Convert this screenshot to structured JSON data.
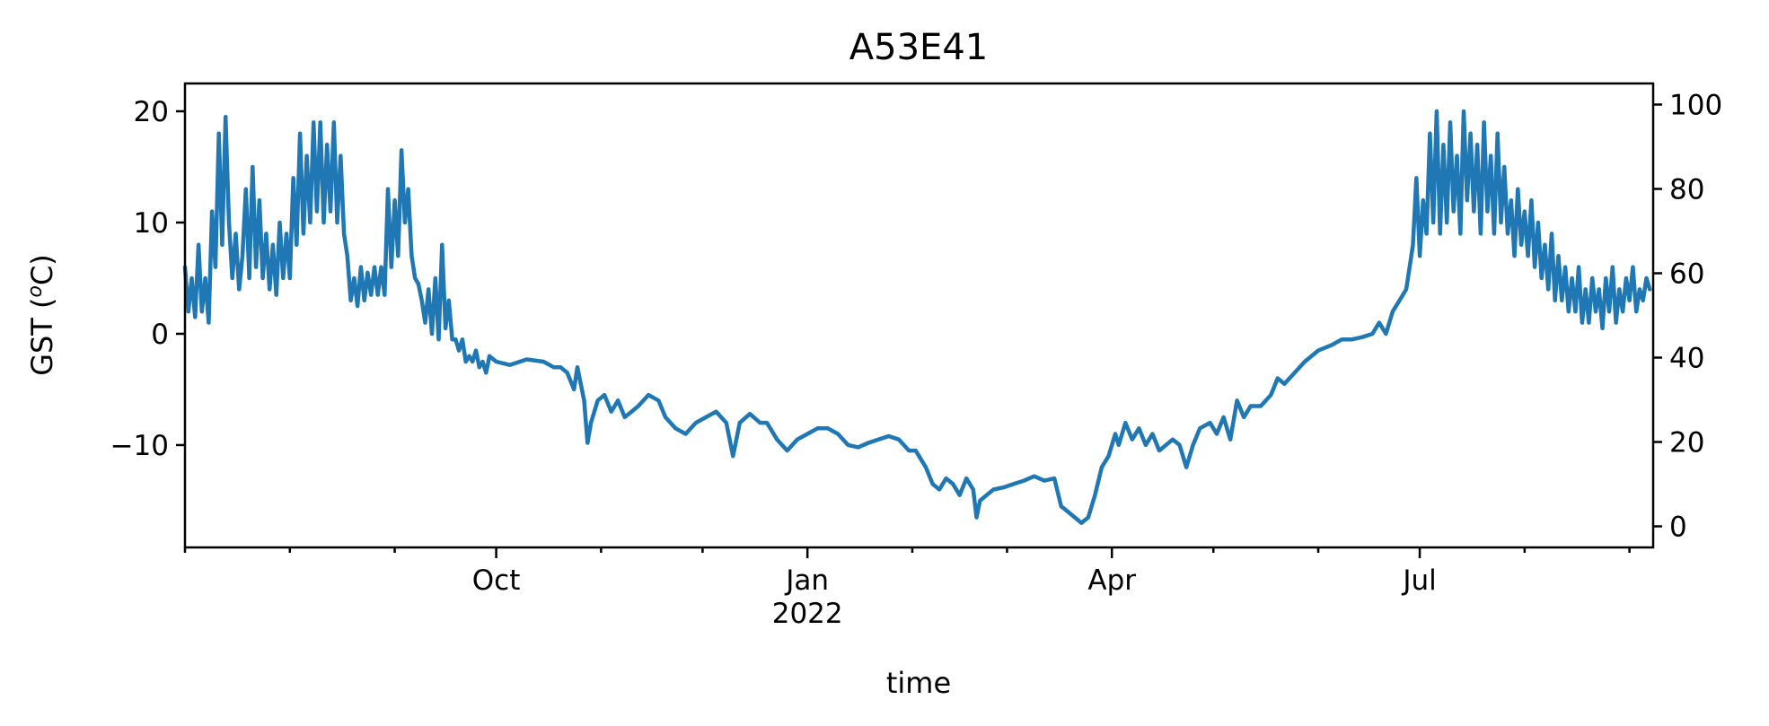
{
  "chart_data": {
    "type": "line",
    "title": "A53E41",
    "xlabel": "time",
    "ylabel": "GST (",
    "ylabel_sup": "o",
    "ylabel_tail": "C)",
    "x_range": [
      "2021-07-01",
      "2022-09-08"
    ],
    "ylim": [
      -19.2,
      22.5
    ],
    "y2lim": [
      -5.0,
      105.0
    ],
    "y_ticks": [
      {
        "value": 20,
        "label": "20"
      },
      {
        "value": 10,
        "label": "10"
      },
      {
        "value": 0,
        "label": "0"
      },
      {
        "value": -10,
        "label": "−10"
      }
    ],
    "y2_ticks": [
      {
        "value": 100,
        "label": "100"
      },
      {
        "value": 80,
        "label": "80"
      },
      {
        "value": 60,
        "label": "60"
      },
      {
        "value": 40,
        "label": "40"
      },
      {
        "value": 20,
        "label": "20"
      },
      {
        "value": 0,
        "label": "0"
      }
    ],
    "x_major_ticks": [
      {
        "date": "2021-10-01",
        "label": "Oct",
        "sublabel": ""
      },
      {
        "date": "2022-01-01",
        "label": "Jan",
        "sublabel": "2022"
      },
      {
        "date": "2022-04-01",
        "label": "Apr",
        "sublabel": ""
      },
      {
        "date": "2022-07-01",
        "label": "Jul",
        "sublabel": ""
      }
    ],
    "x_minor_ticks": [
      "2021-07-01",
      "2021-08-01",
      "2021-09-01",
      "2021-11-01",
      "2021-12-01",
      "2022-02-01",
      "2022-03-01",
      "2022-05-01",
      "2022-06-01",
      "2022-08-01",
      "2022-09-01"
    ],
    "grid": false,
    "series": [
      {
        "color": "#1f77b4",
        "points": [
          [
            "2021-07-01",
            6
          ],
          [
            "2021-07-02",
            2
          ],
          [
            "2021-07-03",
            5
          ],
          [
            "2021-07-04",
            1.5
          ],
          [
            "2021-07-05",
            8
          ],
          [
            "2021-07-06",
            2
          ],
          [
            "2021-07-07",
            5
          ],
          [
            "2021-07-08",
            1
          ],
          [
            "2021-07-09",
            11
          ],
          [
            "2021-07-10",
            6
          ],
          [
            "2021-07-11",
            18
          ],
          [
            "2021-07-12",
            8
          ],
          [
            "2021-07-13",
            19.5
          ],
          [
            "2021-07-14",
            10
          ],
          [
            "2021-07-15",
            5
          ],
          [
            "2021-07-16",
            9
          ],
          [
            "2021-07-17",
            4
          ],
          [
            "2021-07-18",
            7
          ],
          [
            "2021-07-19",
            13
          ],
          [
            "2021-07-20",
            5
          ],
          [
            "2021-07-21",
            15
          ],
          [
            "2021-07-22",
            6
          ],
          [
            "2021-07-23",
            12
          ],
          [
            "2021-07-24",
            5
          ],
          [
            "2021-07-25",
            9
          ],
          [
            "2021-07-26",
            4
          ],
          [
            "2021-07-27",
            8
          ],
          [
            "2021-07-28",
            3.5
          ],
          [
            "2021-07-29",
            10
          ],
          [
            "2021-07-30",
            5
          ],
          [
            "2021-07-31",
            9
          ],
          [
            "2021-08-01",
            5
          ],
          [
            "2021-08-02",
            14
          ],
          [
            "2021-08-03",
            8
          ],
          [
            "2021-08-04",
            18
          ],
          [
            "2021-08-05",
            9
          ],
          [
            "2021-08-06",
            16
          ],
          [
            "2021-08-07",
            10
          ],
          [
            "2021-08-08",
            19
          ],
          [
            "2021-08-09",
            11
          ],
          [
            "2021-08-10",
            19
          ],
          [
            "2021-08-11",
            10
          ],
          [
            "2021-08-12",
            17
          ],
          [
            "2021-08-13",
            11
          ],
          [
            "2021-08-14",
            19
          ],
          [
            "2021-08-15",
            10
          ],
          [
            "2021-08-16",
            16
          ],
          [
            "2021-08-17",
            9
          ],
          [
            "2021-08-18",
            7
          ],
          [
            "2021-08-19",
            3
          ],
          [
            "2021-08-20",
            5
          ],
          [
            "2021-08-21",
            2.5
          ],
          [
            "2021-08-22",
            6
          ],
          [
            "2021-08-23",
            3
          ],
          [
            "2021-08-24",
            5.5
          ],
          [
            "2021-08-25",
            3.5
          ],
          [
            "2021-08-26",
            6
          ],
          [
            "2021-08-27",
            3.5
          ],
          [
            "2021-08-28",
            6
          ],
          [
            "2021-08-29",
            3.5
          ],
          [
            "2021-08-30",
            13
          ],
          [
            "2021-08-31",
            6
          ],
          [
            "2021-09-01",
            12
          ],
          [
            "2021-09-02",
            7
          ],
          [
            "2021-09-03",
            16.5
          ],
          [
            "2021-09-04",
            10
          ],
          [
            "2021-09-05",
            13
          ],
          [
            "2021-09-06",
            7
          ],
          [
            "2021-09-07",
            5
          ],
          [
            "2021-09-08",
            4.5
          ],
          [
            "2021-09-09",
            3
          ],
          [
            "2021-09-10",
            1
          ],
          [
            "2021-09-11",
            4
          ],
          [
            "2021-09-12",
            0
          ],
          [
            "2021-09-13",
            5
          ],
          [
            "2021-09-14",
            -0.5
          ],
          [
            "2021-09-15",
            8
          ],
          [
            "2021-09-16",
            0.5
          ],
          [
            "2021-09-17",
            3
          ],
          [
            "2021-09-18",
            -0.5
          ],
          [
            "2021-09-19",
            -0.5
          ],
          [
            "2021-09-20",
            -1.5
          ],
          [
            "2021-09-21",
            -0.5
          ],
          [
            "2021-09-22",
            -2.5
          ],
          [
            "2021-09-23",
            -2
          ],
          [
            "2021-09-24",
            -2.5
          ],
          [
            "2021-09-25",
            -1.5
          ],
          [
            "2021-09-26",
            -3
          ],
          [
            "2021-09-27",
            -2.5
          ],
          [
            "2021-09-28",
            -3.5
          ],
          [
            "2021-09-29",
            -2
          ],
          [
            "2021-10-01",
            -2.5
          ],
          [
            "2021-10-05",
            -2.8
          ],
          [
            "2021-10-10",
            -2.3
          ],
          [
            "2021-10-15",
            -2.5
          ],
          [
            "2021-10-18",
            -3
          ],
          [
            "2021-10-20",
            -3
          ],
          [
            "2021-10-22",
            -3.5
          ],
          [
            "2021-10-24",
            -5
          ],
          [
            "2021-10-25",
            -3
          ],
          [
            "2021-10-27",
            -6
          ],
          [
            "2021-10-28",
            -9.8
          ],
          [
            "2021-10-29",
            -8
          ],
          [
            "2021-10-31",
            -6
          ],
          [
            "2021-11-02",
            -5.5
          ],
          [
            "2021-11-04",
            -7
          ],
          [
            "2021-11-06",
            -6
          ],
          [
            "2021-11-08",
            -7.5
          ],
          [
            "2021-11-10",
            -7
          ],
          [
            "2021-11-12",
            -6.5
          ],
          [
            "2021-11-15",
            -5.5
          ],
          [
            "2021-11-18",
            -6
          ],
          [
            "2021-11-20",
            -7.5
          ],
          [
            "2021-11-23",
            -8.5
          ],
          [
            "2021-11-26",
            -9
          ],
          [
            "2021-11-29",
            -8
          ],
          [
            "2021-12-02",
            -7.5
          ],
          [
            "2021-12-05",
            -7
          ],
          [
            "2021-12-08",
            -8
          ],
          [
            "2021-12-10",
            -11
          ],
          [
            "2021-12-12",
            -8
          ],
          [
            "2021-12-15",
            -7.2
          ],
          [
            "2021-12-18",
            -8
          ],
          [
            "2021-12-20",
            -8
          ],
          [
            "2021-12-23",
            -9.5
          ],
          [
            "2021-12-26",
            -10.5
          ],
          [
            "2021-12-29",
            -9.5
          ],
          [
            "2022-01-01",
            -9
          ],
          [
            "2022-01-04",
            -8.5
          ],
          [
            "2022-01-07",
            -8.5
          ],
          [
            "2022-01-10",
            -9
          ],
          [
            "2022-01-13",
            -10
          ],
          [
            "2022-01-16",
            -10.2
          ],
          [
            "2022-01-19",
            -9.8
          ],
          [
            "2022-01-22",
            -9.5
          ],
          [
            "2022-01-25",
            -9.2
          ],
          [
            "2022-01-28",
            -9.5
          ],
          [
            "2022-01-31",
            -10.5
          ],
          [
            "2022-02-02",
            -10.5
          ],
          [
            "2022-02-05",
            -12
          ],
          [
            "2022-02-07",
            -13.5
          ],
          [
            "2022-02-09",
            -14
          ],
          [
            "2022-02-11",
            -13
          ],
          [
            "2022-02-13",
            -13.5
          ],
          [
            "2022-02-15",
            -14.5
          ],
          [
            "2022-02-17",
            -13
          ],
          [
            "2022-02-19",
            -14
          ],
          [
            "2022-02-20",
            -16.5
          ],
          [
            "2022-02-21",
            -15
          ],
          [
            "2022-02-23",
            -14.5
          ],
          [
            "2022-02-25",
            -14
          ],
          [
            "2022-02-28",
            -13.8
          ],
          [
            "2022-03-03",
            -13.5
          ],
          [
            "2022-03-06",
            -13.2
          ],
          [
            "2022-03-09",
            -12.8
          ],
          [
            "2022-03-12",
            -13.2
          ],
          [
            "2022-03-15",
            -13
          ],
          [
            "2022-03-17",
            -15.5
          ],
          [
            "2022-03-19",
            -16
          ],
          [
            "2022-03-21",
            -16.5
          ],
          [
            "2022-03-23",
            -17
          ],
          [
            "2022-03-25",
            -16.5
          ],
          [
            "2022-03-27",
            -14.5
          ],
          [
            "2022-03-29",
            -12
          ],
          [
            "2022-03-31",
            -11
          ],
          [
            "2022-04-02",
            -9
          ],
          [
            "2022-04-03",
            -10
          ],
          [
            "2022-04-05",
            -8
          ],
          [
            "2022-04-07",
            -9.5
          ],
          [
            "2022-04-09",
            -8.5
          ],
          [
            "2022-04-11",
            -10
          ],
          [
            "2022-04-13",
            -9
          ],
          [
            "2022-04-15",
            -10.5
          ],
          [
            "2022-04-17",
            -10
          ],
          [
            "2022-04-19",
            -9.5
          ],
          [
            "2022-04-21",
            -10
          ],
          [
            "2022-04-23",
            -12
          ],
          [
            "2022-04-25",
            -10
          ],
          [
            "2022-04-27",
            -8.5
          ],
          [
            "2022-04-30",
            -8
          ],
          [
            "2022-05-02",
            -9
          ],
          [
            "2022-05-04",
            -7.5
          ],
          [
            "2022-05-06",
            -9.5
          ],
          [
            "2022-05-08",
            -6
          ],
          [
            "2022-05-10",
            -7.5
          ],
          [
            "2022-05-12",
            -6.5
          ],
          [
            "2022-05-15",
            -6.5
          ],
          [
            "2022-05-18",
            -5.5
          ],
          [
            "2022-05-20",
            -4
          ],
          [
            "2022-05-22",
            -4.5
          ],
          [
            "2022-05-25",
            -3.5
          ],
          [
            "2022-05-28",
            -2.5
          ],
          [
            "2022-06-01",
            -1.5
          ],
          [
            "2022-06-05",
            -1
          ],
          [
            "2022-06-08",
            -0.5
          ],
          [
            "2022-06-11",
            -0.5
          ],
          [
            "2022-06-14",
            -0.3
          ],
          [
            "2022-06-17",
            0
          ],
          [
            "2022-06-19",
            1
          ],
          [
            "2022-06-21",
            0
          ],
          [
            "2022-06-23",
            2
          ],
          [
            "2022-06-25",
            3
          ],
          [
            "2022-06-27",
            4
          ],
          [
            "2022-06-28",
            6
          ],
          [
            "2022-06-29",
            8
          ],
          [
            "2022-06-30",
            14
          ],
          [
            "2022-07-01",
            7
          ],
          [
            "2022-07-02",
            12
          ],
          [
            "2022-07-03",
            9
          ],
          [
            "2022-07-04",
            18
          ],
          [
            "2022-07-05",
            10
          ],
          [
            "2022-07-06",
            20
          ],
          [
            "2022-07-07",
            9
          ],
          [
            "2022-07-08",
            17
          ],
          [
            "2022-07-09",
            10
          ],
          [
            "2022-07-10",
            19
          ],
          [
            "2022-07-11",
            11
          ],
          [
            "2022-07-12",
            16
          ],
          [
            "2022-07-13",
            9
          ],
          [
            "2022-07-14",
            20
          ],
          [
            "2022-07-15",
            12
          ],
          [
            "2022-07-16",
            18
          ],
          [
            "2022-07-17",
            11
          ],
          [
            "2022-07-18",
            17
          ],
          [
            "2022-07-19",
            9
          ],
          [
            "2022-07-20",
            19
          ],
          [
            "2022-07-21",
            11
          ],
          [
            "2022-07-22",
            16
          ],
          [
            "2022-07-23",
            9
          ],
          [
            "2022-07-24",
            18
          ],
          [
            "2022-07-25",
            10
          ],
          [
            "2022-07-26",
            15
          ],
          [
            "2022-07-27",
            9
          ],
          [
            "2022-07-28",
            12
          ],
          [
            "2022-07-29",
            7
          ],
          [
            "2022-07-30",
            13
          ],
          [
            "2022-07-31",
            8
          ],
          [
            "2022-08-01",
            11
          ],
          [
            "2022-08-02",
            7
          ],
          [
            "2022-08-03",
            12
          ],
          [
            "2022-08-04",
            6
          ],
          [
            "2022-08-05",
            10
          ],
          [
            "2022-08-06",
            5
          ],
          [
            "2022-08-07",
            8
          ],
          [
            "2022-08-08",
            4
          ],
          [
            "2022-08-09",
            9
          ],
          [
            "2022-08-10",
            3
          ],
          [
            "2022-08-11",
            7
          ],
          [
            "2022-08-12",
            3
          ],
          [
            "2022-08-13",
            6
          ],
          [
            "2022-08-14",
            2
          ],
          [
            "2022-08-15",
            5
          ],
          [
            "2022-08-16",
            2
          ],
          [
            "2022-08-17",
            6
          ],
          [
            "2022-08-18",
            1
          ],
          [
            "2022-08-19",
            4
          ],
          [
            "2022-08-20",
            1
          ],
          [
            "2022-08-21",
            5
          ],
          [
            "2022-08-22",
            2
          ],
          [
            "2022-08-23",
            4
          ],
          [
            "2022-08-24",
            0.5
          ],
          [
            "2022-08-25",
            5
          ],
          [
            "2022-08-26",
            2
          ],
          [
            "2022-08-27",
            6
          ],
          [
            "2022-08-28",
            1
          ],
          [
            "2022-08-29",
            4
          ],
          [
            "2022-08-30",
            2
          ],
          [
            "2022-08-31",
            5
          ],
          [
            "2022-09-01",
            3
          ],
          [
            "2022-09-02",
            6
          ],
          [
            "2022-09-03",
            2
          ],
          [
            "2022-09-04",
            4
          ],
          [
            "2022-09-05",
            3
          ],
          [
            "2022-09-06",
            5
          ],
          [
            "2022-09-07",
            4
          ]
        ]
      }
    ]
  }
}
